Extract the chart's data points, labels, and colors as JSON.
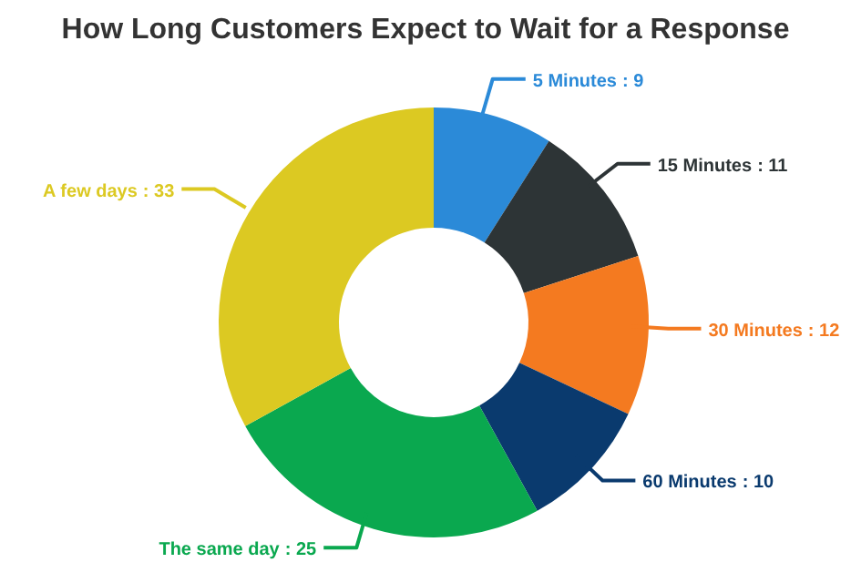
{
  "chart_data": {
    "type": "donut",
    "title": "How Long Customers Expect to Wait for a Response",
    "categories": [
      "5 Minutes",
      "15 Minutes",
      "30 Minutes",
      "60 Minutes",
      "The same day",
      "A few days"
    ],
    "values": [
      9,
      11,
      12,
      10,
      25,
      33
    ],
    "colors": [
      "#2b8ad8",
      "#2d3436",
      "#f47a20",
      "#0a3a6e",
      "#0aa84f",
      "#dcc922"
    ],
    "value_labels": [
      ": 9",
      ": 11",
      ": 12",
      ": 10",
      ": 25",
      ": 33"
    ],
    "legend": false
  }
}
